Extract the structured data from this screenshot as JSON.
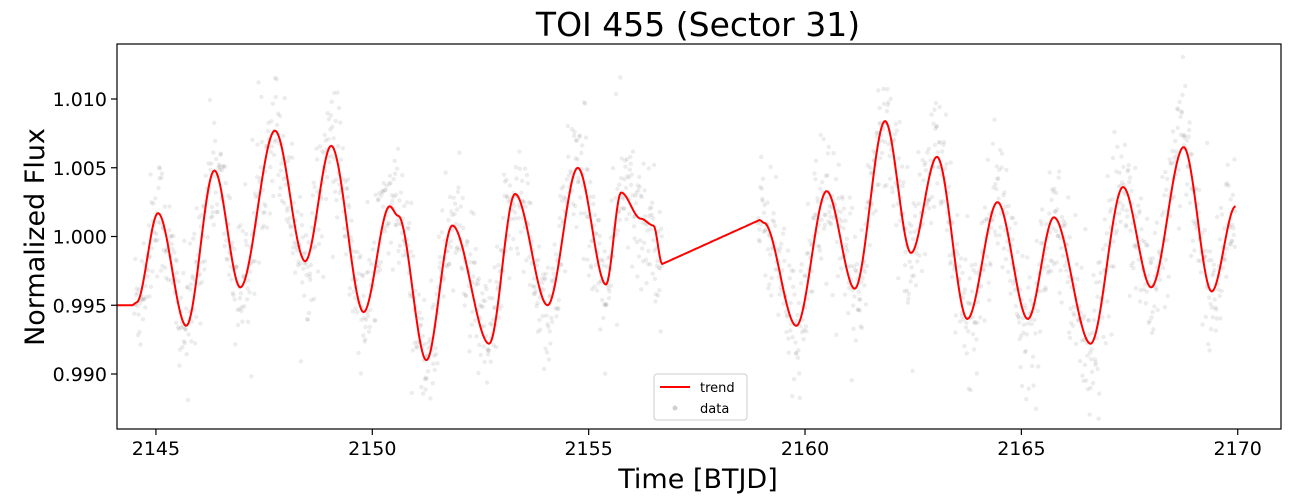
{
  "chart_data": {
    "type": "scatter",
    "title": "TOI 455 (Sector 31)",
    "xlabel": "Time [BTJD]",
    "ylabel": "Normalized Flux",
    "xlim": [
      2144.1,
      2171.0
    ],
    "ylim": [
      0.986,
      1.014
    ],
    "xticks": [
      2145,
      2150,
      2155,
      2160,
      2165,
      2170
    ],
    "xtick_labels": [
      "2145",
      "2150",
      "2155",
      "2160",
      "2165",
      "2170"
    ],
    "yticks": [
      0.99,
      0.995,
      1.0,
      1.005,
      1.01
    ],
    "ytick_labels": [
      "0.990",
      "0.995",
      "1.000",
      "1.005",
      "1.010"
    ],
    "legend_position": "bottom-center",
    "colors": {
      "trend": "#ff0000",
      "data": "#404040"
    },
    "series": [
      {
        "name": "trend",
        "kind": "line",
        "x": [
          2144.1,
          2144.45,
          2144.55,
          2145.05,
          2145.7,
          2146.35,
          2146.95,
          2147.75,
          2148.45,
          2149.05,
          2149.8,
          2150.4,
          2150.6,
          2151.25,
          2151.85,
          2152.7,
          2153.3,
          2154.05,
          2154.75,
          2155.4,
          2155.75,
          2156.2,
          2156.5,
          2156.7,
          2158.95,
          2159.05,
          2159.8,
          2160.5,
          2161.15,
          2161.85,
          2162.45,
          2163.05,
          2163.75,
          2164.45,
          2165.15,
          2165.75,
          2166.6,
          2167.35,
          2168.0,
          2168.75,
          2169.4,
          2169.95
        ],
        "y": [
          0.995,
          0.995,
          0.9952,
          1.0017,
          0.9935,
          1.0048,
          0.9963,
          1.0077,
          0.9982,
          1.0066,
          0.9945,
          1.0022,
          1.0015,
          0.991,
          1.0008,
          0.9922,
          1.0031,
          0.995,
          1.005,
          0.9965,
          1.0032,
          1.0013,
          1.0008,
          0.998,
          1.0012,
          1.001,
          0.9935,
          1.0033,
          0.9962,
          1.0084,
          0.9988,
          1.0058,
          0.994,
          1.0025,
          0.994,
          1.0014,
          0.9922,
          1.0036,
          0.9963,
          1.0065,
          0.996,
          1.0022
        ]
      },
      {
        "name": "data",
        "kind": "scatter",
        "segments": [
          [
            2144.5,
            2156.7
          ],
          [
            2158.9,
            2169.95
          ]
        ],
        "noise_sigma": 0.0023,
        "alpha": 0.1
      }
    ]
  }
}
